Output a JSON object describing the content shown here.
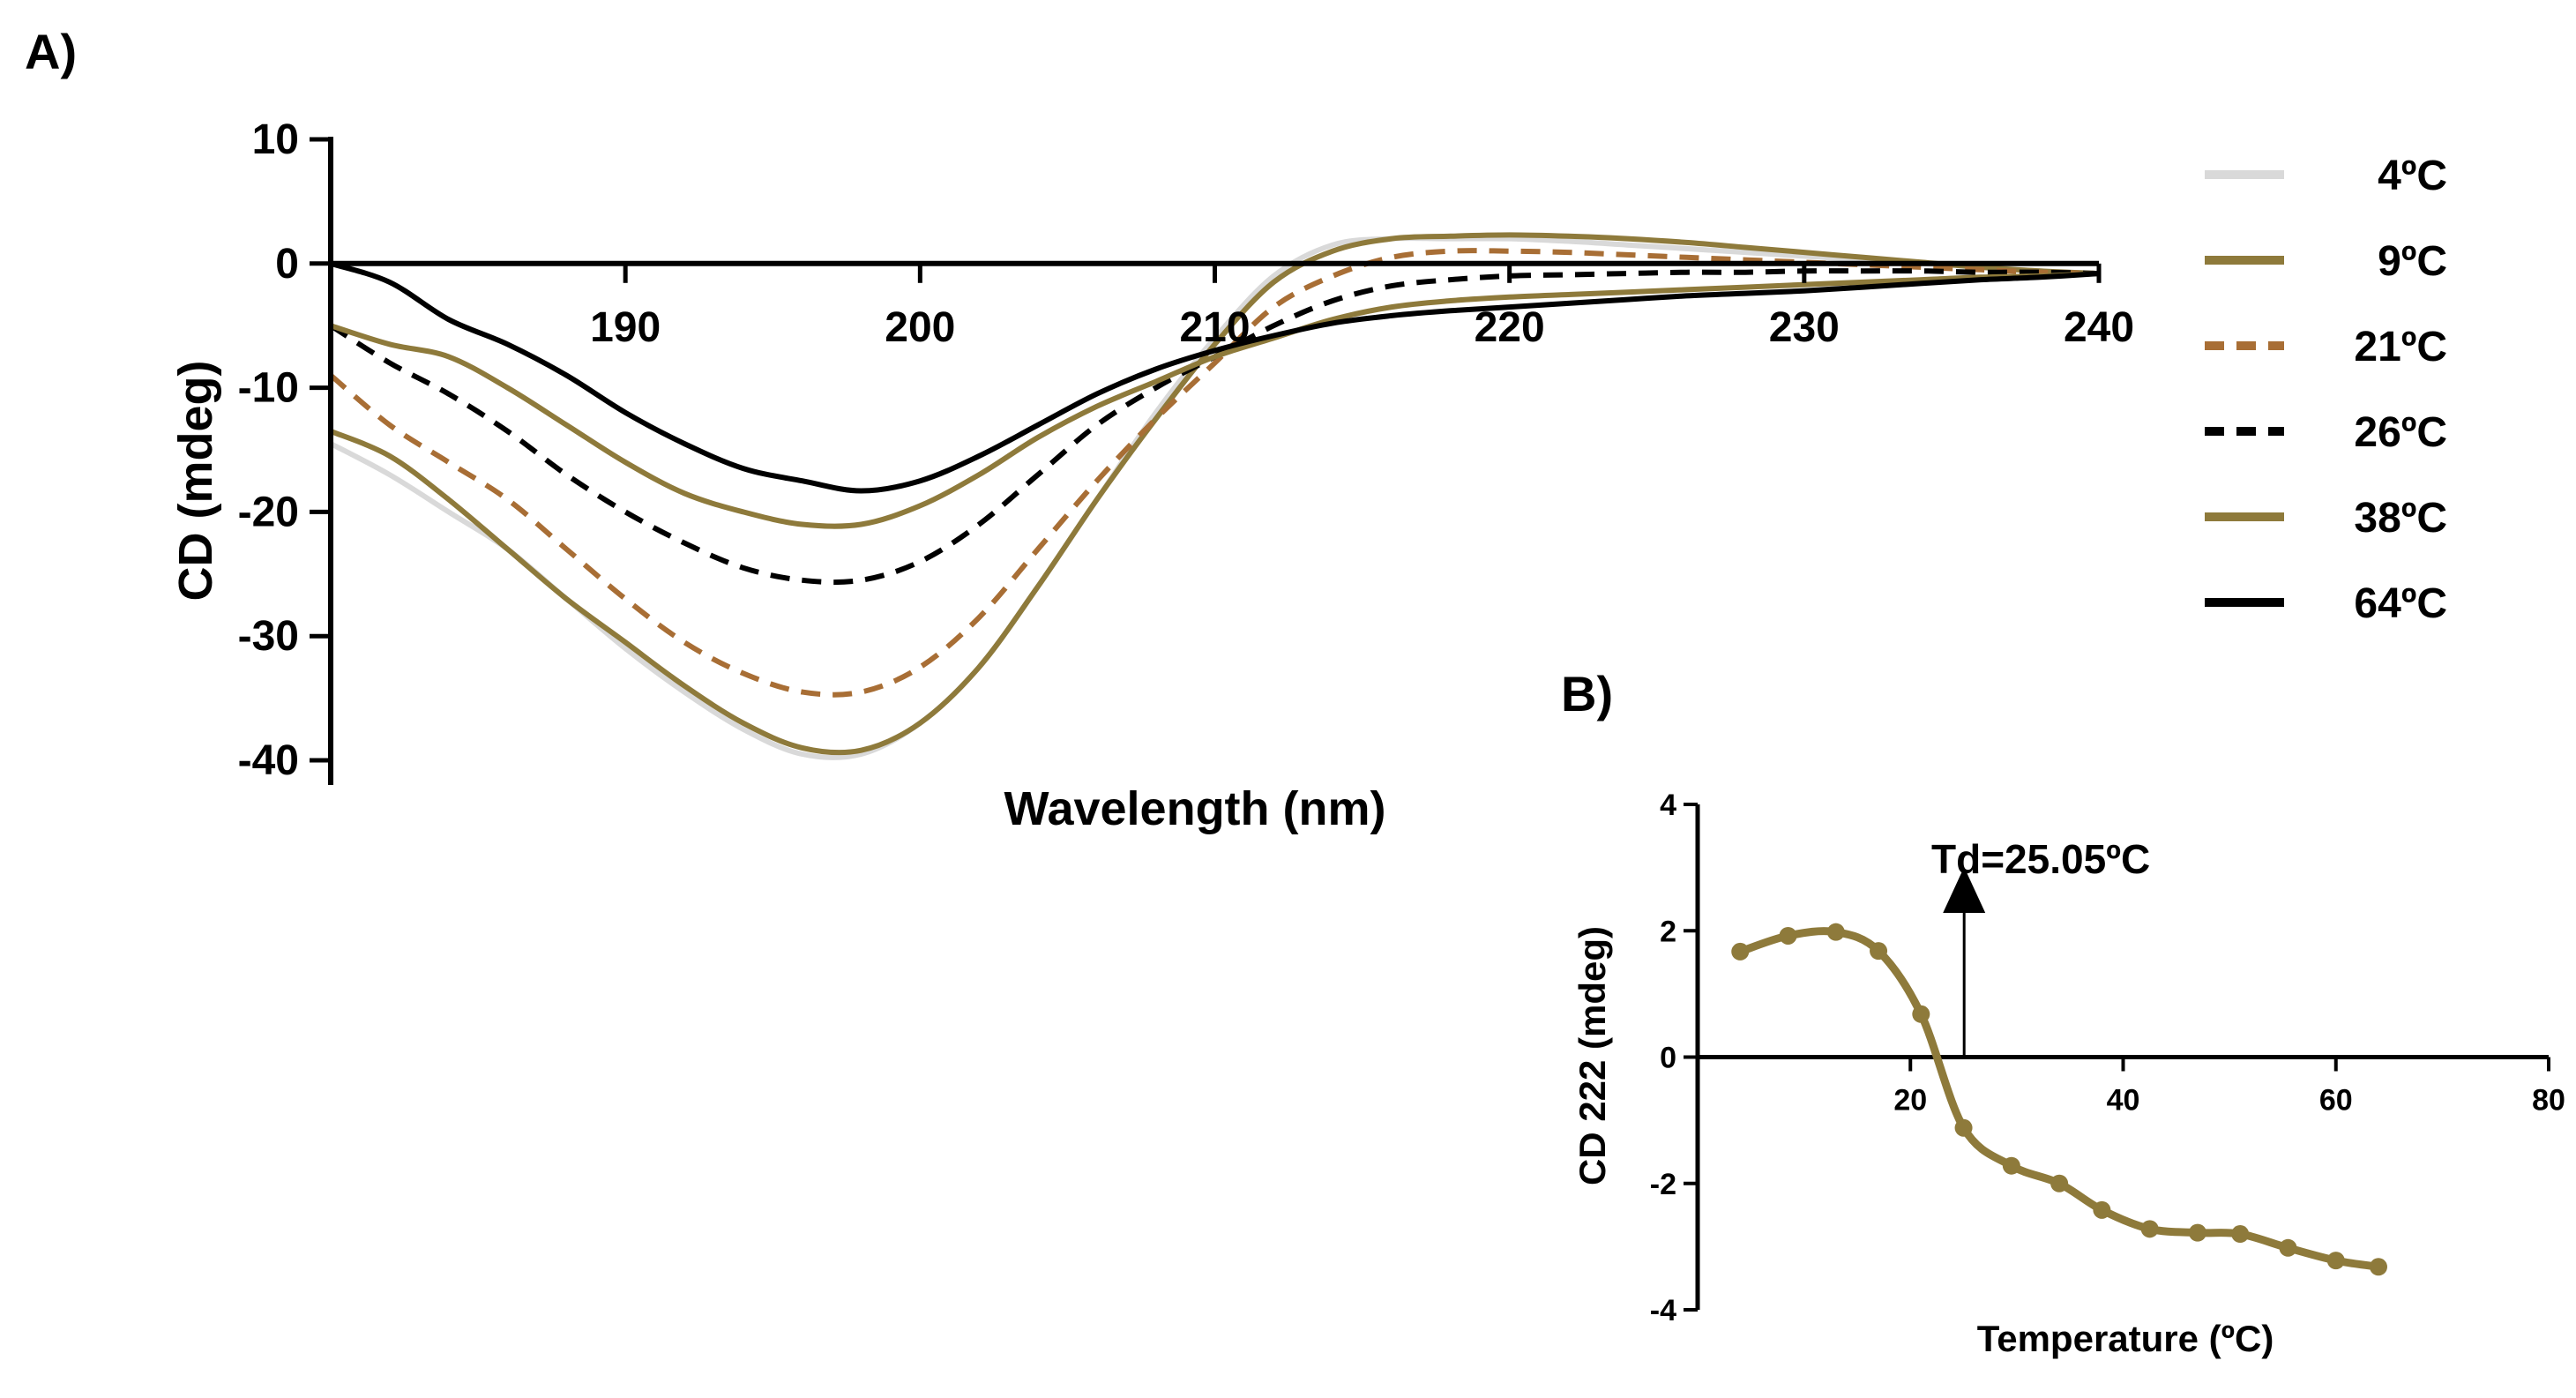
{
  "chart_data": [
    {
      "panel": "A)",
      "type": "line",
      "title": "",
      "xlabel": "Wavelength (nm)",
      "ylabel": "CD (mdeg)",
      "xlim": [
        180,
        240
      ],
      "ylim": [
        -40,
        10
      ],
      "xticks": [
        190,
        200,
        210,
        220,
        230,
        240
      ],
      "yticks": [
        10,
        0,
        -10,
        -20,
        -30,
        -40
      ],
      "legend_position": "right",
      "series": [
        {
          "name": "4ºC",
          "color": "#d9d9d9",
          "dash": "solid",
          "x": [
            180,
            182,
            184,
            186,
            188,
            190,
            192,
            194,
            196,
            198,
            200,
            202,
            204,
            206,
            208,
            210,
            212,
            214,
            216,
            218,
            220,
            222,
            224,
            226,
            228,
            230,
            232,
            234,
            236,
            238,
            240
          ],
          "y": [
            -14.5,
            -17,
            -20,
            -23,
            -27,
            -31,
            -34.5,
            -37.5,
            -39.5,
            -39.5,
            -37,
            -32.5,
            -26,
            -19,
            -12,
            -6,
            -1,
            1.5,
            2,
            2,
            2,
            1.8,
            1.5,
            1.2,
            0.9,
            0.6,
            0.3,
            0,
            -0.3,
            -0.6,
            -0.8
          ]
        },
        {
          "name": "9ºC",
          "color": "#8e7a3b",
          "dash": "solid",
          "x": [
            180,
            182,
            184,
            186,
            188,
            190,
            192,
            194,
            196,
            198,
            200,
            202,
            204,
            206,
            208,
            210,
            212,
            214,
            216,
            218,
            220,
            222,
            224,
            226,
            228,
            230,
            232,
            234,
            236,
            238,
            240
          ],
          "y": [
            -13.5,
            -15.5,
            -19,
            -23,
            -27,
            -30.5,
            -34,
            -37,
            -39,
            -39.2,
            -37,
            -32.5,
            -26,
            -19,
            -12.5,
            -6.5,
            -1.5,
            1,
            2,
            2.2,
            2.3,
            2.2,
            2,
            1.7,
            1.3,
            0.9,
            0.5,
            0.1,
            -0.3,
            -0.6,
            -0.8
          ]
        },
        {
          "name": "21ºC",
          "color": "#a86e35",
          "dash": "dashed",
          "x": [
            180,
            182,
            184,
            186,
            188,
            190,
            192,
            194,
            196,
            198,
            200,
            202,
            204,
            206,
            208,
            210,
            212,
            214,
            216,
            218,
            220,
            222,
            224,
            226,
            228,
            230,
            232,
            234,
            236,
            238,
            240
          ],
          "y": [
            -9,
            -13,
            -16,
            -19,
            -23,
            -27,
            -30.5,
            -33,
            -34.5,
            -34.5,
            -32.5,
            -28.5,
            -23,
            -17.5,
            -12.5,
            -8,
            -3.5,
            -1,
            0.5,
            1,
            1,
            0.9,
            0.7,
            0.5,
            0.3,
            0.1,
            -0.1,
            -0.3,
            -0.5,
            -0.7,
            -0.8
          ]
        },
        {
          "name": "26ºC",
          "color": "#000000",
          "dash": "dashed",
          "x": [
            180,
            182,
            184,
            186,
            188,
            190,
            192,
            194,
            196,
            198,
            200,
            202,
            204,
            206,
            208,
            210,
            212,
            214,
            216,
            218,
            220,
            222,
            224,
            226,
            228,
            230,
            232,
            234,
            236,
            238,
            240
          ],
          "y": [
            -5,
            -8,
            -10.5,
            -13.5,
            -17,
            -20,
            -22.5,
            -24.5,
            -25.5,
            -25.5,
            -24,
            -21,
            -17,
            -13,
            -10,
            -7.5,
            -5,
            -3,
            -1.8,
            -1.3,
            -1,
            -0.9,
            -0.8,
            -0.7,
            -0.7,
            -0.6,
            -0.6,
            -0.6,
            -0.7,
            -0.7,
            -0.8
          ]
        },
        {
          "name": "38ºC",
          "color": "#8e7a3b",
          "dash": "solid",
          "x": [
            180,
            182,
            184,
            186,
            188,
            190,
            192,
            194,
            196,
            198,
            200,
            202,
            204,
            206,
            208,
            210,
            212,
            214,
            216,
            218,
            220,
            222,
            224,
            226,
            228,
            230,
            232,
            234,
            236,
            238,
            240
          ],
          "y": [
            -5,
            -6.5,
            -7.5,
            -10,
            -13,
            -16,
            -18.5,
            -20,
            -21,
            -21,
            -19.5,
            -17,
            -14,
            -11.5,
            -9.5,
            -7.5,
            -6,
            -4.5,
            -3.5,
            -3,
            -2.7,
            -2.5,
            -2.3,
            -2.1,
            -1.9,
            -1.7,
            -1.5,
            -1.3,
            -1.1,
            -1,
            -0.8
          ]
        },
        {
          "name": "64ºC",
          "color": "#000000",
          "dash": "solid",
          "x": [
            180,
            182,
            184,
            186,
            188,
            190,
            192,
            194,
            196,
            198,
            200,
            202,
            204,
            206,
            208,
            210,
            212,
            214,
            216,
            218,
            220,
            222,
            224,
            226,
            228,
            230,
            232,
            234,
            236,
            238,
            240
          ],
          "y": [
            0,
            -1.5,
            -4.5,
            -6.5,
            -9,
            -12,
            -14.5,
            -16.5,
            -17.5,
            -18.3,
            -17.5,
            -15.5,
            -13,
            -10.5,
            -8.5,
            -7,
            -5.8,
            -4.8,
            -4.2,
            -3.8,
            -3.5,
            -3.2,
            -2.9,
            -2.6,
            -2.4,
            -2.2,
            -1.9,
            -1.6,
            -1.3,
            -1.1,
            -0.8
          ]
        }
      ]
    },
    {
      "panel": "B)",
      "type": "line",
      "title": "",
      "xlabel": "Temperature (ºC)",
      "ylabel": "CD 222 (mdeg)",
      "xlim": [
        0,
        80
      ],
      "ylim": [
        -4,
        4
      ],
      "xticks": [
        20,
        40,
        60,
        80
      ],
      "yticks": [
        4,
        2,
        0,
        -2,
        -4
      ],
      "annotation": "Td=25.05ºC",
      "annotation_x": 25.05,
      "series": [
        {
          "name": "CD 222",
          "color": "#8e7a3b",
          "markers": true,
          "x": [
            4,
            8.5,
            13,
            17,
            21,
            25,
            29.5,
            34,
            38,
            42.5,
            47,
            51,
            55.5,
            60,
            64
          ],
          "y": [
            1.67,
            1.92,
            1.98,
            1.68,
            0.68,
            -1.12,
            -1.72,
            -2.0,
            -2.42,
            -2.72,
            -2.78,
            -2.8,
            -3.02,
            -3.22,
            -3.32
          ]
        }
      ]
    }
  ]
}
